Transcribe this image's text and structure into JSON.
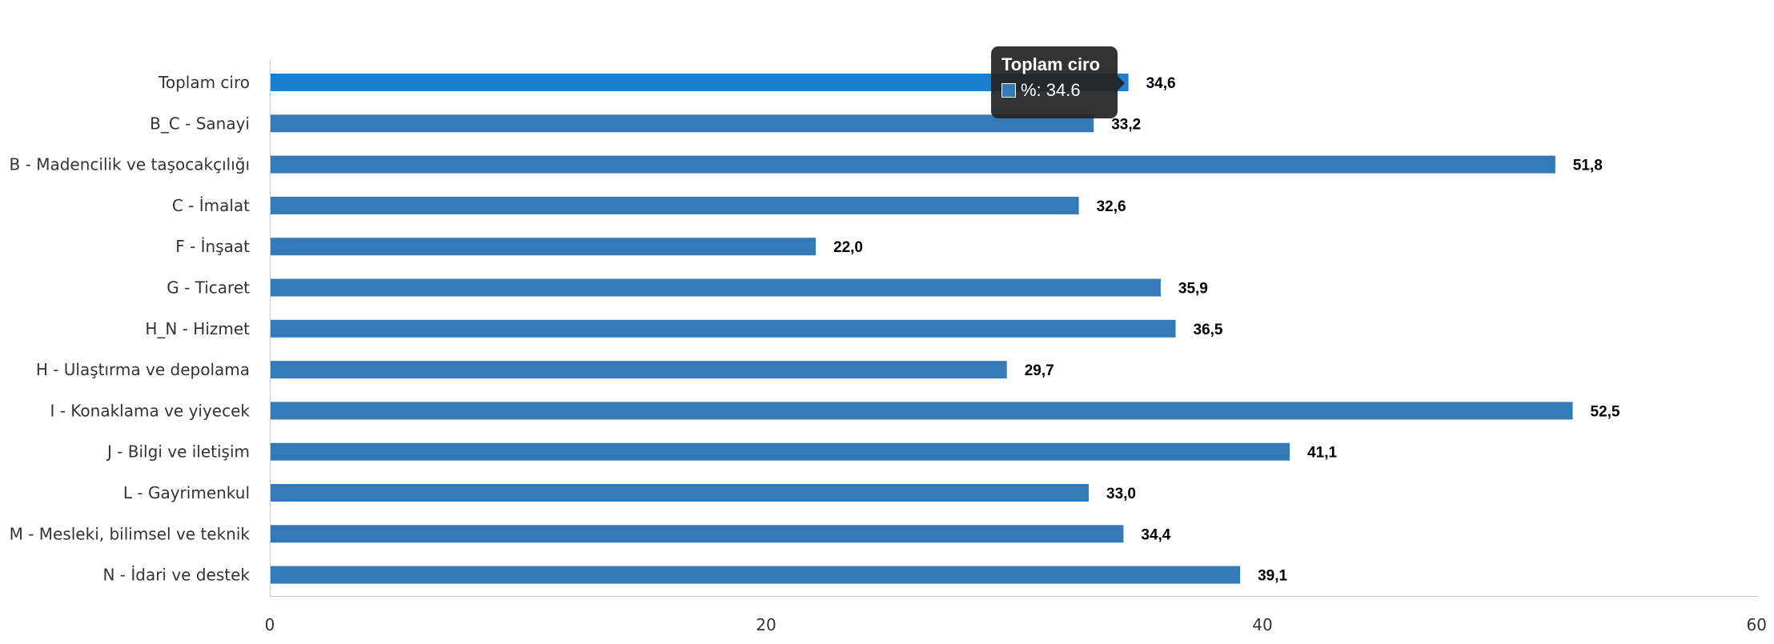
{
  "chart_data": {
    "type": "bar",
    "orientation": "horizontal",
    "categories": [
      "Toplam ciro",
      "B_C - Sanayi",
      "B - Madencilik ve taşocakçılığı",
      "C - İmalat",
      "F - İnşaat",
      "G - Ticaret",
      "H_N - Hizmet",
      "H - Ulaştırma ve depolama",
      "I - Konaklama ve yiyecek",
      "J - Bilgi ve iletişim",
      "L - Gayrimenkul",
      "M - Mesleki, bilimsel ve teknik",
      "N - İdari ve destek"
    ],
    "series": [
      {
        "name": "%",
        "values": [
          34.6,
          33.2,
          51.8,
          32.6,
          22.0,
          35.9,
          36.5,
          29.7,
          52.5,
          41.1,
          33.0,
          34.4,
          39.1
        ]
      }
    ],
    "data_labels": [
      "34,6",
      "33,2",
      "51,8",
      "32,6",
      "22,0",
      "35,9",
      "36,5",
      "29,7",
      "52,5",
      "41,1",
      "33,0",
      "34,4",
      "39,1"
    ],
    "x_ticks": [
      0,
      20,
      40,
      60
    ],
    "xlim": [
      0,
      60
    ],
    "grid": false,
    "legend": "none",
    "title": "",
    "xlabel": "",
    "ylabel": "",
    "colors": {
      "bar": "#337ab7",
      "bar_highlight": "#1a7fcf",
      "axis": "#cccccc",
      "category_text": "#333333",
      "tick_text": "#333333",
      "label_text": "#000000"
    },
    "highlighted_index": 0
  },
  "tooltip": {
    "title": "Toplam ciro",
    "value_text": "%: 34.6"
  }
}
